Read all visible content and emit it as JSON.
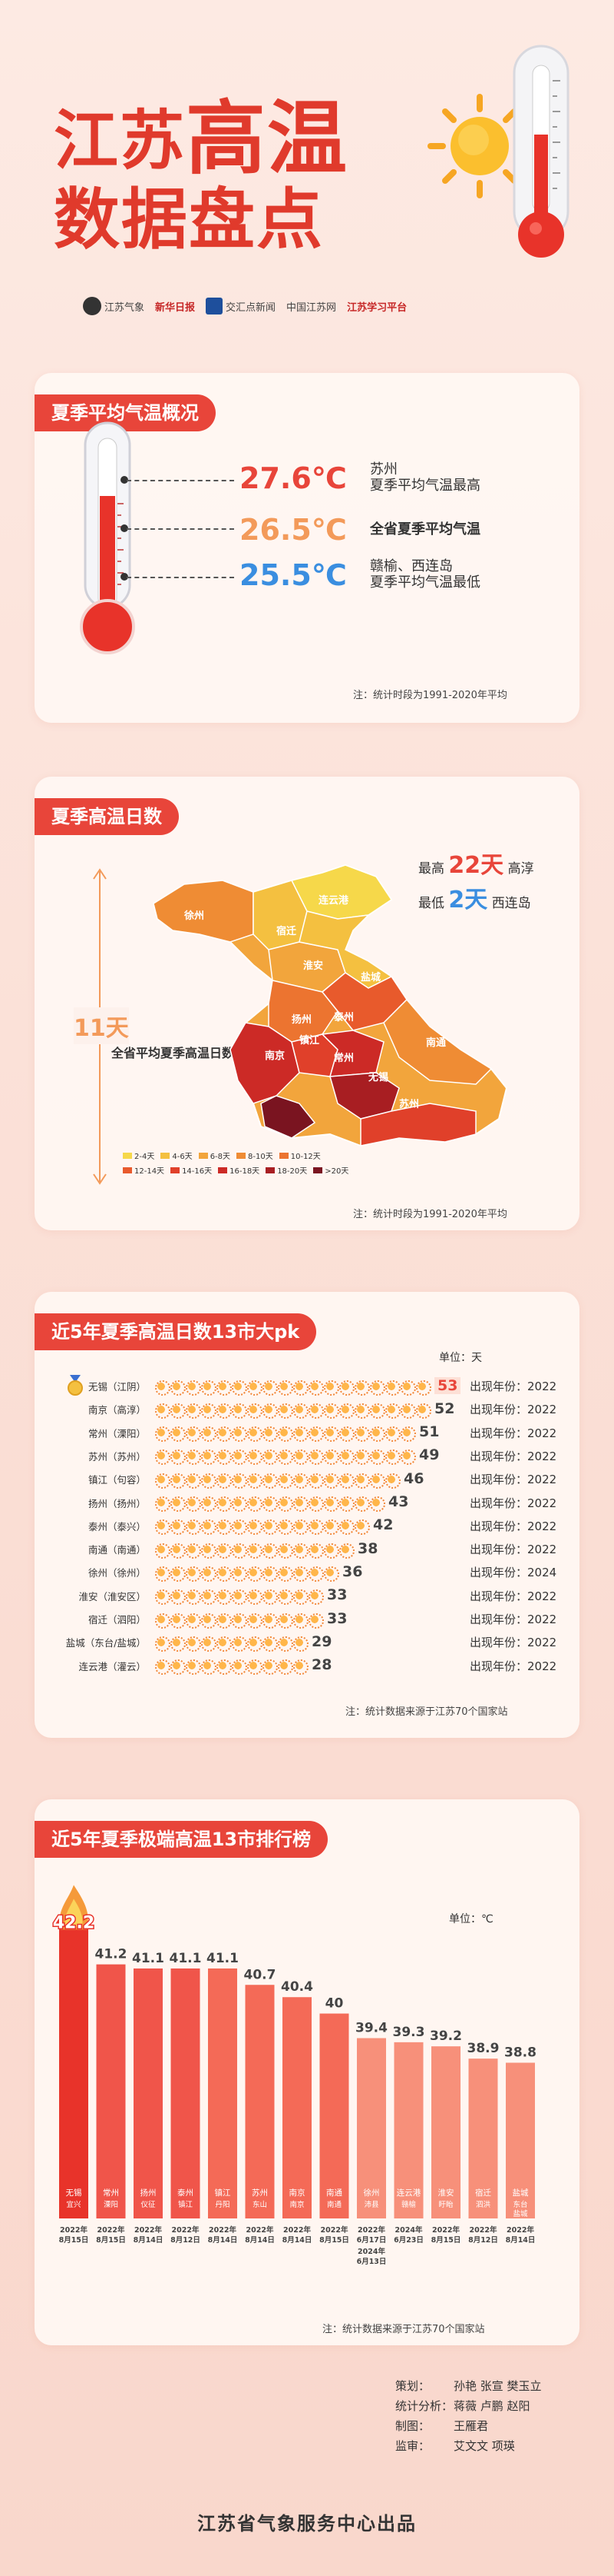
{
  "header": {
    "title_line1_a": "江苏",
    "title_line1_b": "高温",
    "title_line2": "数据盘点",
    "logos": [
      "江苏气象",
      "新华日报",
      "交汇点新闻",
      "中国江苏网",
      "江苏学习平台"
    ]
  },
  "section1": {
    "tag": "夏季平均气温概况",
    "rows": [
      {
        "value": "27.6℃",
        "label_l1": "苏州",
        "label_l2": "夏季平均气温最高",
        "color": "#e8453a"
      },
      {
        "value": "26.5℃",
        "label_l1": "全省夏季平均气温",
        "label_l2": "",
        "color": "#f39a5a"
      },
      {
        "value": "25.5℃",
        "label_l1": "赣榆、西连岛",
        "label_l2": "夏季平均气温最低",
        "color": "#3a8ee0"
      }
    ],
    "note": "注：统计时段为1991-2020年平均"
  },
  "section2": {
    "tag": "夏季高温日数",
    "max_prefix": "最高",
    "max_value": "22天",
    "max_place": "高淳",
    "min_prefix": "最低",
    "min_value": "2天",
    "min_place": "西连岛",
    "avg_value": "11天",
    "avg_label": "全省平均夏季高温日数",
    "cities": [
      "徐州",
      "连云港",
      "宿迁",
      "淮安",
      "盐城",
      "扬州",
      "泰州",
      "镇江",
      "南京",
      "常州",
      "南通",
      "无锡",
      "苏州"
    ],
    "legend": [
      {
        "label": "2-4天",
        "color": "#f6d84a"
      },
      {
        "label": "4-6天",
        "color": "#f4c040"
      },
      {
        "label": "6-8天",
        "color": "#f2a53c"
      },
      {
        "label": "8-10天",
        "color": "#ef8c34"
      },
      {
        "label": "10-12天",
        "color": "#ec7430"
      },
      {
        "label": "12-14天",
        "color": "#e85a2c"
      },
      {
        "label": "14-16天",
        "color": "#e0402a"
      },
      {
        "label": "16-18天",
        "color": "#cc2a26"
      },
      {
        "label": "18-20天",
        "color": "#a81e22"
      },
      {
        "label": ">20天",
        "color": "#7a1420"
      }
    ],
    "note": "注：统计时段为1991-2020年平均"
  },
  "section3": {
    "tag": "近5年夏季高温日数13市大pk",
    "unit": "单位：天",
    "rows": [
      {
        "name": "无锡（江阴）",
        "days": 53,
        "year": "出现年份：2022"
      },
      {
        "name": "南京（高淳）",
        "days": 52,
        "year": "出现年份：2022"
      },
      {
        "name": "常州（溧阳）",
        "days": 51,
        "year": "出现年份：2022"
      },
      {
        "name": "苏州（苏州）",
        "days": 49,
        "year": "出现年份：2022"
      },
      {
        "name": "镇江（句容）",
        "days": 46,
        "year": "出现年份：2022"
      },
      {
        "name": "扬州（扬州）",
        "days": 43,
        "year": "出现年份：2022"
      },
      {
        "name": "泰州（泰兴）",
        "days": 42,
        "year": "出现年份：2022"
      },
      {
        "name": "南通（南通）",
        "days": 38,
        "year": "出现年份：2022"
      },
      {
        "name": "徐州（徐州）",
        "days": 36,
        "year": "出现年份：2024"
      },
      {
        "name": "淮安（淮安区）",
        "days": 33,
        "year": "出现年份：2022"
      },
      {
        "name": "宿迁（泗阳）",
        "days": 33,
        "year": "出现年份：2022"
      },
      {
        "name": "盐城（东台/盐城）",
        "days": 29,
        "year": "出现年份：2022"
      },
      {
        "name": "连云港（灌云）",
        "days": 28,
        "year": "出现年份：2022"
      }
    ],
    "note": "注：统计数据来源于江苏70个国家站"
  },
  "section4": {
    "tag": "近5年夏季极端高温13市排行榜",
    "unit": "单位：℃",
    "note": "注：统计数据来源于江苏70个国家站"
  },
  "chart_data": {
    "type": "bar",
    "title": "近5年夏季极端高温13市排行榜",
    "ylabel": "单位：℃",
    "categories": [
      "无锡 宜兴",
      "常州 溧阳",
      "扬州 仪征",
      "泰州 镇江",
      "镇江 丹阳",
      "苏州 东山",
      "南京 南京",
      "南通 南通",
      "徐州 沛县",
      "连云港 赣榆",
      "淮安 盱眙",
      "宿迁 泗洪",
      "盐城 东台 盐城"
    ],
    "cities": [
      "无锡",
      "常州",
      "扬州",
      "泰州",
      "镇江",
      "苏州",
      "南京",
      "南通",
      "徐州",
      "连云港",
      "淮安",
      "宿迁",
      "盐城"
    ],
    "stations": [
      "宜兴",
      "溧阳",
      "仪征",
      "镇江",
      "丹阳",
      "东山",
      "南京",
      "南通",
      "沛县",
      "赣榆",
      "盱眙",
      "泗洪",
      "东台 盐城"
    ],
    "dates": [
      [
        "2022年",
        "8月15日"
      ],
      [
        "2022年",
        "8月15日"
      ],
      [
        "2022年",
        "8月14日"
      ],
      [
        "2022年",
        "8月12日"
      ],
      [
        "2022年",
        "8月14日"
      ],
      [
        "2022年",
        "8月14日"
      ],
      [
        "2022年",
        "8月14日"
      ],
      [
        "2022年",
        "8月15日"
      ],
      [
        "2022年",
        "6月17日"
      ],
      [
        "2024年",
        "6月23日"
      ],
      [
        "2022年",
        "8月15日"
      ],
      [
        "2022年",
        "8月12日"
      ],
      [
        "2022年",
        "8月14日"
      ]
    ],
    "extra_date": [
      "2024年",
      "6月13日"
    ],
    "values": [
      42.2,
      41.2,
      41.1,
      41.1,
      41.1,
      40.7,
      40.4,
      40,
      39.4,
      39.3,
      39.2,
      38.9,
      38.8
    ],
    "value_labels": [
      "42.2",
      "41.2",
      "41.1",
      "41.1",
      "41.1",
      "40.7",
      "40.4",
      "40",
      "39.4",
      "39.3",
      "39.2",
      "38.9",
      "38.8"
    ],
    "colors": {
      "top": "#e8332a",
      "high": "#f0554a",
      "mid": "#f46a57",
      "low": "#f7907a"
    }
  },
  "credits": [
    {
      "k": "策划：",
      "v": "孙艳  张宣  樊玉立"
    },
    {
      "k": "统计分析：",
      "v": "蒋薇  卢鹏  赵阳"
    },
    {
      "k": "制图：",
      "v": "王雁君"
    },
    {
      "k": "监审：",
      "v": "艾文文  项瑛"
    }
  ],
  "footer": "江苏省气象服务中心出品"
}
